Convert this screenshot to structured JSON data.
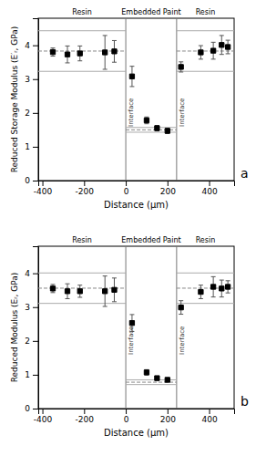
{
  "chart_data": [
    {
      "type": "scatter",
      "title": "a",
      "xlabel": "Distance (µm)",
      "ylabel": "Reduced Storage Modulus (E′ᵣ, GPa)",
      "region_labels": [
        "Resin",
        "Embedded Paint",
        "Resin"
      ],
      "interface_label": "Interface",
      "xlim": [
        -420,
        520
      ],
      "ylim": [
        0,
        4.8
      ],
      "xticks": [
        -400,
        -200,
        0,
        200,
        400
      ],
      "yticks": [
        0,
        1,
        2,
        3,
        4
      ],
      "grid": false,
      "color": "black",
      "marker": "square",
      "interfaces": [
        0,
        244
      ],
      "resin_mean": 3.83,
      "resin_band": [
        3.23,
        4.43
      ],
      "paint_mean": 1.5,
      "paint_band": [
        1.43,
        1.57
      ],
      "x": [
        -350,
        -280,
        -220,
        -100,
        -55,
        30,
        100,
        150,
        200,
        265,
        360,
        420,
        460,
        490
      ],
      "values": [
        3.8,
        3.73,
        3.76,
        3.79,
        3.82,
        3.08,
        1.78,
        1.55,
        1.47,
        3.36,
        3.79,
        3.84,
        4.01,
        3.95
      ],
      "errors": [
        0.12,
        0.25,
        0.22,
        0.5,
        0.32,
        0.3,
        0.1,
        0.08,
        0.08,
        0.15,
        0.2,
        0.25,
        0.28,
        0.2
      ]
    },
    {
      "type": "scatter",
      "title": "b",
      "xlabel": "Distance (µm)",
      "ylabel": "Reduced Modulus (Eᵣ, GPa)",
      "region_labels": [
        "Resin",
        "Embedded Paint",
        "Resin"
      ],
      "interface_label": "Interface",
      "xlim": [
        -420,
        520
      ],
      "ylim": [
        0,
        4.8
      ],
      "xticks": [
        -400,
        -200,
        0,
        200,
        400
      ],
      "yticks": [
        0,
        1,
        2,
        3,
        4
      ],
      "grid": false,
      "color": "black",
      "marker": "square",
      "interfaces": [
        0,
        244
      ],
      "resin_mean": 3.56,
      "resin_band": [
        3.11,
        4.01
      ],
      "paint_mean": 0.78,
      "paint_band": [
        0.71,
        0.85
      ],
      "x": [
        -350,
        -280,
        -220,
        -100,
        -55,
        30,
        100,
        150,
        200,
        265,
        360,
        420,
        460,
        490
      ],
      "values": [
        3.55,
        3.47,
        3.47,
        3.47,
        3.51,
        2.53,
        1.07,
        0.9,
        0.85,
        2.99,
        3.45,
        3.6,
        3.55,
        3.6
      ],
      "errors": [
        0.12,
        0.22,
        0.18,
        0.45,
        0.35,
        0.25,
        0.08,
        0.06,
        0.06,
        0.2,
        0.2,
        0.3,
        0.25,
        0.18
      ]
    }
  ]
}
